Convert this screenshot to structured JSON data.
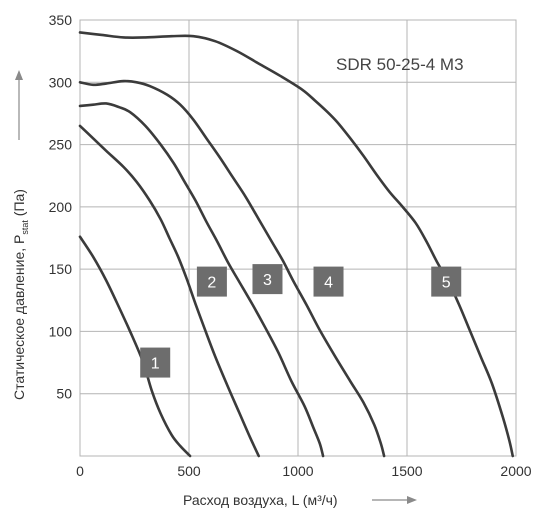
{
  "chart_data": {
    "type": "line",
    "title": "SDR 50-25-4 M3",
    "xlabel": "Расход воздуха, L (м³/ч)",
    "ylabel": "Статическое давление, P",
    "ylabel_sub": "stat",
    "ylabel_suffix": " (Па)",
    "xlim": [
      0,
      2000
    ],
    "ylim": [
      0,
      350
    ],
    "xticks": [
      0,
      500,
      1000,
      1500,
      2000
    ],
    "yticks": [
      50,
      100,
      150,
      200,
      250,
      300,
      350
    ],
    "grid": true,
    "colors": {
      "curve": "#3b3b3b",
      "label_box": "#6d6d6d",
      "grid": "#b4b4b4",
      "axis_arrow": "#8a8a8a"
    },
    "series": [
      {
        "label": "1",
        "label_at": [
          345,
          75
        ],
        "points": [
          [
            0,
            176
          ],
          [
            60,
            160
          ],
          [
            120,
            141
          ],
          [
            180,
            119
          ],
          [
            240,
            96
          ],
          [
            290,
            75
          ],
          [
            330,
            52
          ],
          [
            370,
            34
          ],
          [
            420,
            17
          ],
          [
            460,
            8
          ],
          [
            505,
            0
          ]
        ]
      },
      {
        "label": "2",
        "label_at": [
          605,
          140
        ],
        "points": [
          [
            0,
            265
          ],
          [
            60,
            255
          ],
          [
            120,
            245
          ],
          [
            200,
            232
          ],
          [
            260,
            220
          ],
          [
            320,
            205
          ],
          [
            370,
            190
          ],
          [
            410,
            175
          ],
          [
            450,
            160
          ],
          [
            490,
            142
          ],
          [
            530,
            122
          ],
          [
            570,
            103
          ],
          [
            620,
            80
          ],
          [
            680,
            55
          ],
          [
            730,
            35
          ],
          [
            780,
            15
          ],
          [
            820,
            0
          ]
        ]
      },
      {
        "label": "3",
        "label_at": [
          860,
          142
        ],
        "points": [
          [
            0,
            281
          ],
          [
            60,
            282
          ],
          [
            120,
            283
          ],
          [
            180,
            280
          ],
          [
            230,
            276
          ],
          [
            300,
            265
          ],
          [
            370,
            250
          ],
          [
            430,
            235
          ],
          [
            480,
            220
          ],
          [
            530,
            205
          ],
          [
            580,
            188
          ],
          [
            630,
            172
          ],
          [
            680,
            155
          ],
          [
            730,
            140
          ],
          [
            790,
            122
          ],
          [
            850,
            103
          ],
          [
            910,
            83
          ],
          [
            970,
            60
          ],
          [
            1030,
            40
          ],
          [
            1070,
            23
          ],
          [
            1100,
            10
          ],
          [
            1115,
            0
          ]
        ]
      },
      {
        "label": "4",
        "label_at": [
          1140,
          140
        ],
        "points": [
          [
            0,
            300
          ],
          [
            60,
            298
          ],
          [
            120,
            299
          ],
          [
            200,
            301
          ],
          [
            260,
            300
          ],
          [
            320,
            297
          ],
          [
            400,
            290
          ],
          [
            460,
            282
          ],
          [
            520,
            270
          ],
          [
            580,
            255
          ],
          [
            640,
            240
          ],
          [
            700,
            224
          ],
          [
            760,
            208
          ],
          [
            820,
            190
          ],
          [
            880,
            172
          ],
          [
            930,
            157
          ],
          [
            980,
            140
          ],
          [
            1040,
            121
          ],
          [
            1100,
            101
          ],
          [
            1170,
            80
          ],
          [
            1240,
            60
          ],
          [
            1300,
            43
          ],
          [
            1350,
            25
          ],
          [
            1380,
            10
          ],
          [
            1395,
            0
          ]
        ]
      },
      {
        "label": "5",
        "label_at": [
          1680,
          140
        ],
        "points": [
          [
            0,
            340
          ],
          [
            100,
            338
          ],
          [
            200,
            336
          ],
          [
            300,
            336
          ],
          [
            420,
            337
          ],
          [
            520,
            337
          ],
          [
            620,
            333
          ],
          [
            720,
            325
          ],
          [
            820,
            315
          ],
          [
            920,
            305
          ],
          [
            1020,
            294
          ],
          [
            1080,
            285
          ],
          [
            1130,
            277
          ],
          [
            1180,
            268
          ],
          [
            1240,
            255
          ],
          [
            1300,
            241
          ],
          [
            1360,
            226
          ],
          [
            1420,
            212
          ],
          [
            1480,
            200
          ],
          [
            1540,
            187
          ],
          [
            1590,
            172
          ],
          [
            1640,
            155
          ],
          [
            1690,
            140
          ],
          [
            1740,
            121
          ],
          [
            1790,
            100
          ],
          [
            1840,
            79
          ],
          [
            1890,
            58
          ],
          [
            1940,
            31
          ],
          [
            1970,
            12
          ],
          [
            1985,
            0
          ]
        ]
      }
    ]
  }
}
